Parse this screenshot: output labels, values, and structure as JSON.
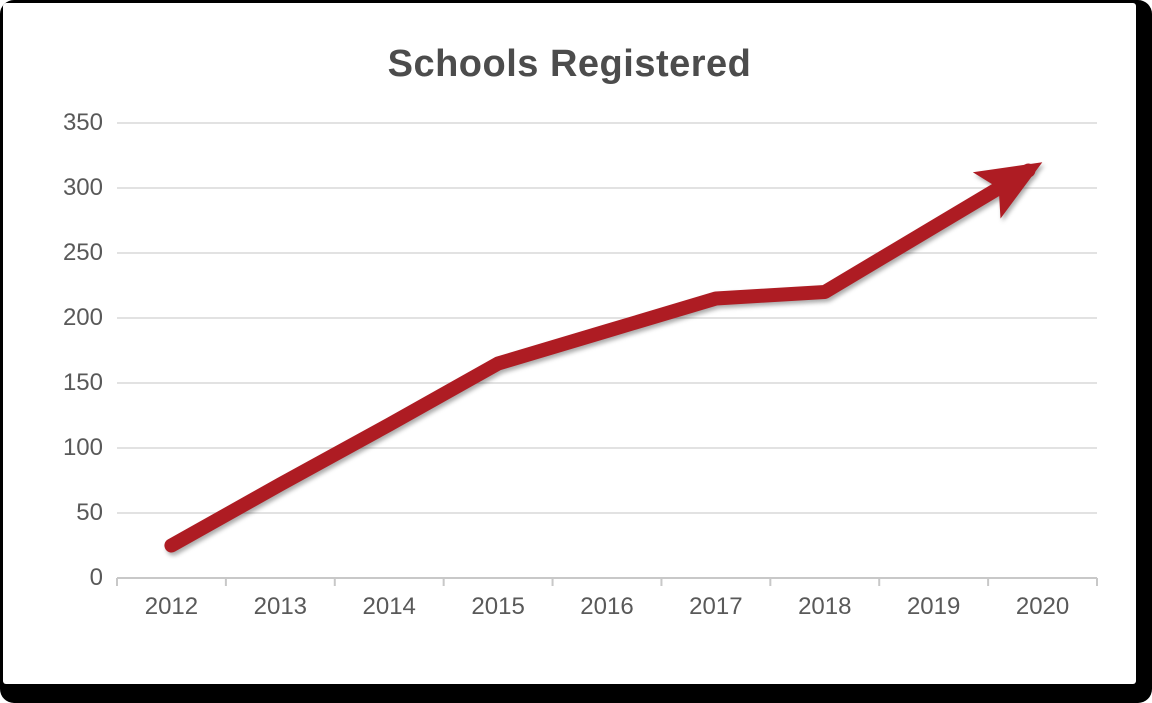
{
  "window": {
    "kind": "chart-screenshot",
    "frame_color": "#000000",
    "canvas_color": "#FFFFFF"
  },
  "chart_data": {
    "type": "line",
    "title": "Schools Registered",
    "categories": [
      "2012",
      "2013",
      "2014",
      "2015",
      "2016",
      "2017",
      "2018",
      "2019",
      "2020"
    ],
    "series": [
      {
        "name": "Schools Registered",
        "values": [
          25,
          72,
          118,
          165,
          190,
          215,
          220,
          270,
          320
        ]
      }
    ],
    "xlabel": "",
    "ylabel": "",
    "ylim": [
      0,
      350
    ],
    "ytick_interval": 50,
    "ytick_labels": [
      "350",
      "300",
      "250",
      "200",
      "150",
      "100",
      "50",
      "0"
    ],
    "grid": true,
    "legend_position": "none",
    "line_end_style": "arrow",
    "colors": {
      "line": "#AE1C23",
      "gridline": "#D9D9D9",
      "axis": "#C8C8C8",
      "tick_text": "#595959",
      "title_text": "#4C4C4C"
    }
  }
}
